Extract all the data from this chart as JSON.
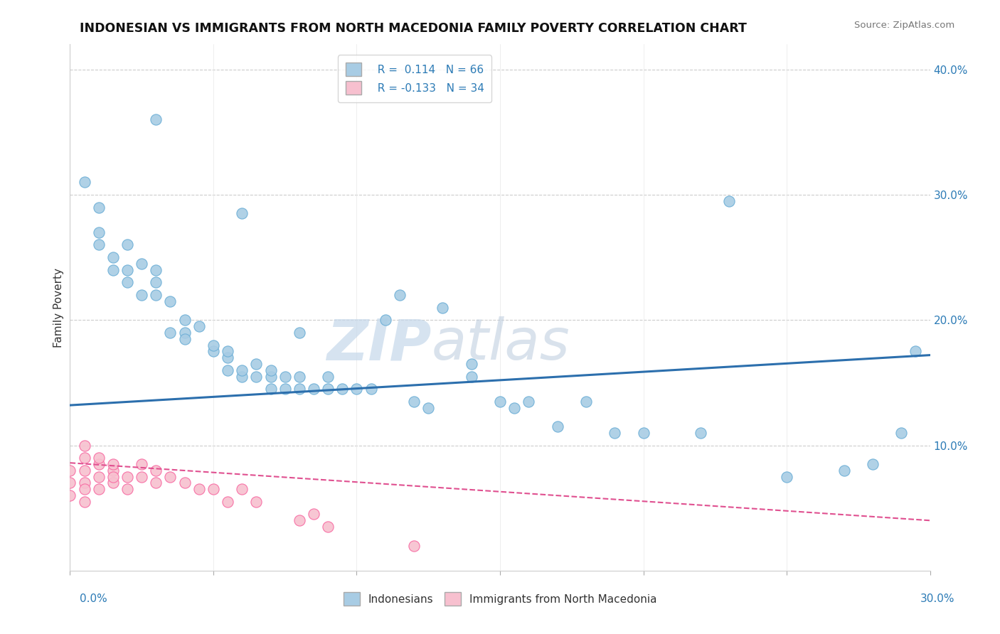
{
  "title": "INDONESIAN VS IMMIGRANTS FROM NORTH MACEDONIA FAMILY POVERTY CORRELATION CHART",
  "source": "Source: ZipAtlas.com",
  "ylabel": "Family Poverty",
  "xlim": [
    0.0,
    0.3
  ],
  "ylim": [
    0.0,
    0.42
  ],
  "blue_color": "#a8cce4",
  "blue_edge_color": "#6baed6",
  "pink_color": "#f7c0cf",
  "pink_edge_color": "#f768a1",
  "blue_line_color": "#2c6fad",
  "pink_line_color": "#e05090",
  "watermark_color": "#d0dce8",
  "indonesian_x": [
    0.005,
    0.01,
    0.01,
    0.01,
    0.015,
    0.015,
    0.02,
    0.02,
    0.02,
    0.025,
    0.025,
    0.03,
    0.03,
    0.03,
    0.035,
    0.035,
    0.04,
    0.04,
    0.04,
    0.045,
    0.05,
    0.05,
    0.055,
    0.055,
    0.055,
    0.06,
    0.06,
    0.065,
    0.065,
    0.07,
    0.07,
    0.07,
    0.075,
    0.075,
    0.08,
    0.08,
    0.085,
    0.09,
    0.09,
    0.095,
    0.1,
    0.105,
    0.11,
    0.115,
    0.12,
    0.125,
    0.13,
    0.14,
    0.15,
    0.155,
    0.16,
    0.17,
    0.18,
    0.19,
    0.2,
    0.22,
    0.23,
    0.25,
    0.27,
    0.28,
    0.29,
    0.295,
    0.03,
    0.06,
    0.08,
    0.14
  ],
  "indonesian_y": [
    0.31,
    0.29,
    0.27,
    0.26,
    0.24,
    0.25,
    0.24,
    0.26,
    0.23,
    0.22,
    0.245,
    0.23,
    0.22,
    0.24,
    0.215,
    0.19,
    0.19,
    0.185,
    0.2,
    0.195,
    0.175,
    0.18,
    0.17,
    0.16,
    0.175,
    0.155,
    0.16,
    0.165,
    0.155,
    0.155,
    0.145,
    0.16,
    0.145,
    0.155,
    0.145,
    0.155,
    0.145,
    0.145,
    0.155,
    0.145,
    0.145,
    0.145,
    0.2,
    0.22,
    0.135,
    0.13,
    0.21,
    0.155,
    0.135,
    0.13,
    0.135,
    0.115,
    0.135,
    0.11,
    0.11,
    0.11,
    0.295,
    0.075,
    0.08,
    0.085,
    0.11,
    0.175,
    0.36,
    0.285,
    0.19,
    0.165
  ],
  "macedonia_x": [
    0.0,
    0.0,
    0.0,
    0.005,
    0.005,
    0.005,
    0.005,
    0.005,
    0.005,
    0.01,
    0.01,
    0.01,
    0.01,
    0.015,
    0.015,
    0.015,
    0.015,
    0.02,
    0.02,
    0.025,
    0.025,
    0.03,
    0.03,
    0.035,
    0.04,
    0.045,
    0.05,
    0.055,
    0.06,
    0.065,
    0.08,
    0.085,
    0.09,
    0.12
  ],
  "macedonia_y": [
    0.08,
    0.07,
    0.06,
    0.09,
    0.08,
    0.07,
    0.065,
    0.055,
    0.1,
    0.085,
    0.075,
    0.065,
    0.09,
    0.08,
    0.07,
    0.075,
    0.085,
    0.075,
    0.065,
    0.085,
    0.075,
    0.07,
    0.08,
    0.075,
    0.07,
    0.065,
    0.065,
    0.055,
    0.065,
    0.055,
    0.04,
    0.045,
    0.035,
    0.02
  ],
  "blue_trend_start_y": 0.132,
  "blue_trend_end_y": 0.172,
  "pink_trend_start_y": 0.086,
  "pink_trend_end_y": 0.04
}
